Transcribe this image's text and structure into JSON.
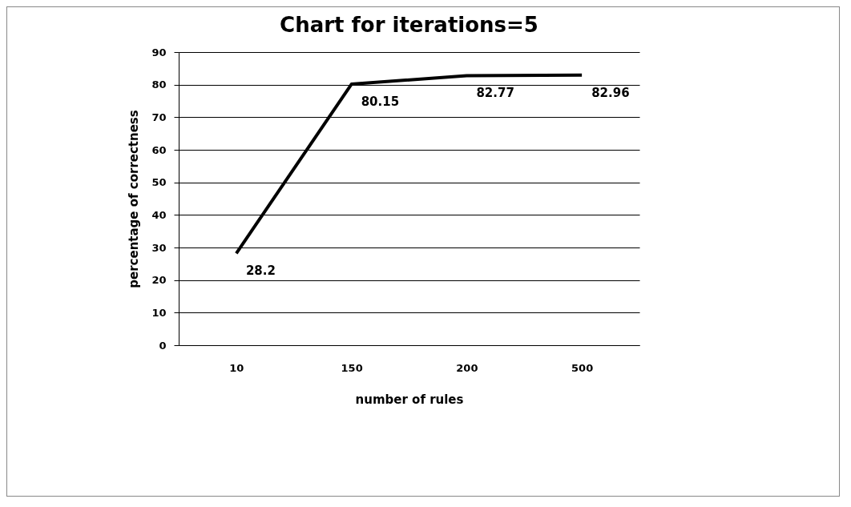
{
  "chart_data": {
    "type": "line",
    "title": "Chart for iterations=5",
    "xlabel": "number of rules",
    "ylabel": "percentage of correctness",
    "categories": [
      "10",
      "150",
      "200",
      "500"
    ],
    "series": [
      {
        "color": "#000000",
        "values": [
          28.2,
          80.15,
          82.77,
          82.96
        ]
      }
    ],
    "ylim": [
      0,
      90
    ],
    "yticks": [
      0,
      10,
      20,
      30,
      40,
      50,
      60,
      70,
      80,
      90
    ],
    "grid": "y",
    "data_labels": true,
    "marker": "none",
    "line_style": "solid"
  }
}
